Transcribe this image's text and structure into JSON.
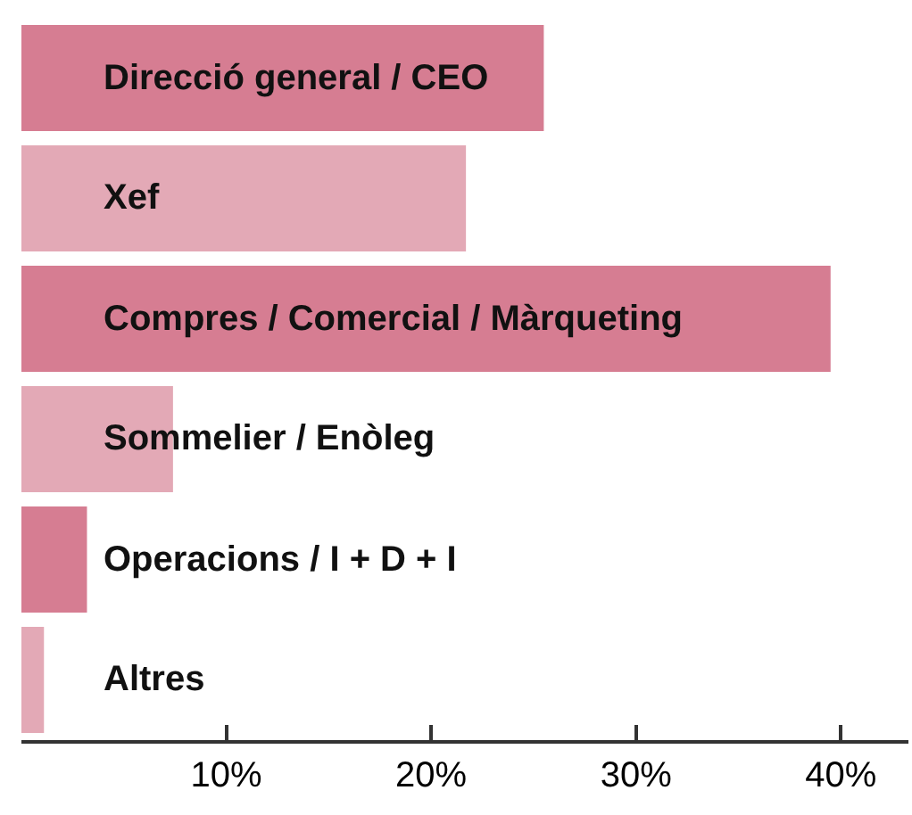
{
  "chart_data": {
    "type": "bar",
    "orientation": "horizontal",
    "categories": [
      "Direcció general / CEO",
      "Xef",
      "Compres / Comercial / Màrqueting",
      "Sommelier / Enòleg",
      "Operacions / I + D + I",
      "Altres"
    ],
    "values": [
      25.5,
      21.7,
      39.5,
      7.4,
      3.2,
      1.1
    ],
    "colors": [
      "#d67d92",
      "#e3a9b6",
      "#d67d92",
      "#e3a9b6",
      "#d67d92",
      "#e3a9b6"
    ],
    "xlim": [
      0,
      43.3
    ],
    "xticks": [
      {
        "value": 10,
        "label": "10%"
      },
      {
        "value": 20,
        "label": "20%"
      },
      {
        "value": 30,
        "label": "30%"
      },
      {
        "value": 40,
        "label": "40%"
      }
    ]
  }
}
